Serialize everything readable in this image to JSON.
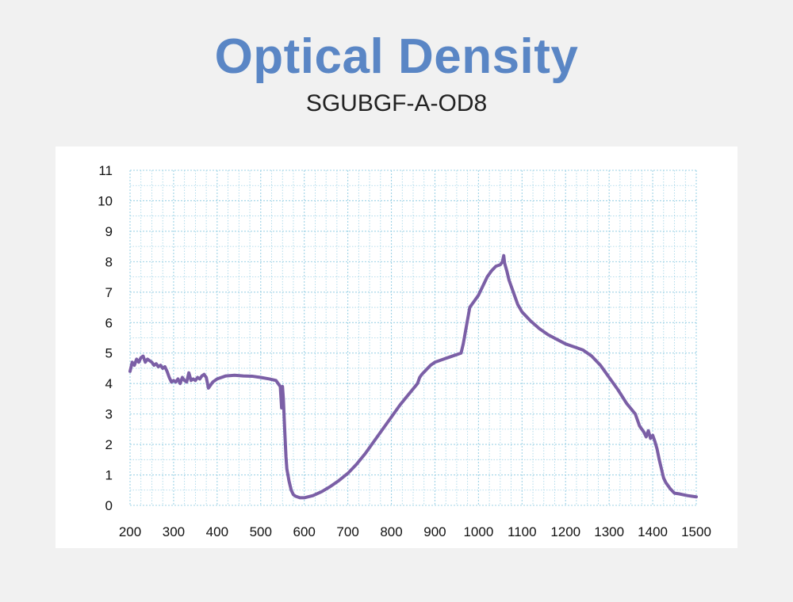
{
  "chart_data": {
    "type": "line",
    "title": "Optical Density",
    "subtitle": "SGUBGF-A-OD8",
    "xlabel": "",
    "ylabel": "",
    "xlim": [
      200,
      1500
    ],
    "ylim": [
      0,
      11
    ],
    "x_ticks": [
      200,
      300,
      400,
      500,
      600,
      700,
      800,
      900,
      1000,
      1100,
      1200,
      1300,
      1400,
      1500
    ],
    "y_ticks": [
      0,
      1,
      2,
      3,
      4,
      5,
      6,
      7,
      8,
      9,
      10,
      11
    ],
    "grid": true,
    "line_color": "#7b5fa6",
    "grid_color": "#9fd3e6",
    "series": [
      {
        "x": [
          200,
          205,
          210,
          215,
          220,
          225,
          230,
          235,
          240,
          245,
          250,
          255,
          260,
          265,
          270,
          275,
          280,
          285,
          290,
          295,
          300,
          305,
          310,
          315,
          320,
          325,
          330,
          335,
          340,
          345,
          350,
          355,
          360,
          365,
          370,
          375,
          380,
          390,
          400,
          420,
          440,
          460,
          480,
          500,
          520,
          535,
          540,
          545,
          548,
          550,
          552,
          555,
          558,
          560,
          565,
          570,
          575,
          580,
          590,
          600,
          620,
          640,
          660,
          680,
          700,
          720,
          740,
          760,
          780,
          800,
          820,
          840,
          860,
          865,
          870,
          880,
          890,
          900,
          920,
          940,
          960,
          965,
          970,
          975,
          980,
          990,
          1000,
          1010,
          1020,
          1030,
          1040,
          1050,
          1055,
          1058,
          1060,
          1062,
          1065,
          1070,
          1080,
          1090,
          1100,
          1120,
          1140,
          1160,
          1180,
          1200,
          1220,
          1240,
          1250,
          1260,
          1280,
          1300,
          1320,
          1340,
          1360,
          1370,
          1380,
          1385,
          1390,
          1395,
          1400,
          1405,
          1410,
          1415,
          1420,
          1425,
          1430,
          1440,
          1450,
          1460,
          1470,
          1480,
          1490,
          1500
        ],
        "y": [
          4.4,
          4.7,
          4.6,
          4.8,
          4.7,
          4.85,
          4.9,
          4.7,
          4.8,
          4.75,
          4.7,
          4.6,
          4.65,
          4.55,
          4.6,
          4.5,
          4.55,
          4.4,
          4.2,
          4.05,
          4.1,
          4.05,
          4.15,
          4.0,
          4.2,
          4.1,
          4.05,
          4.35,
          4.1,
          4.15,
          4.1,
          4.2,
          4.15,
          4.25,
          4.3,
          4.2,
          3.85,
          4.05,
          4.15,
          4.25,
          4.27,
          4.25,
          4.24,
          4.2,
          4.15,
          4.1,
          4.0,
          3.9,
          3.2,
          3.9,
          3.5,
          2.5,
          1.6,
          1.2,
          0.8,
          0.5,
          0.35,
          0.3,
          0.25,
          0.25,
          0.32,
          0.45,
          0.62,
          0.82,
          1.05,
          1.35,
          1.7,
          2.1,
          2.5,
          2.9,
          3.3,
          3.65,
          4.0,
          4.2,
          4.3,
          4.45,
          4.6,
          4.7,
          4.8,
          4.9,
          5.0,
          5.3,
          5.7,
          6.1,
          6.5,
          6.7,
          6.9,
          7.2,
          7.5,
          7.7,
          7.85,
          7.9,
          8.0,
          8.2,
          7.95,
          7.85,
          7.7,
          7.4,
          7.0,
          6.6,
          6.35,
          6.05,
          5.8,
          5.6,
          5.45,
          5.3,
          5.2,
          5.1,
          5.0,
          4.9,
          4.6,
          4.2,
          3.8,
          3.35,
          3.0,
          2.6,
          2.4,
          2.25,
          2.45,
          2.2,
          2.3,
          2.1,
          1.85,
          1.5,
          1.2,
          0.9,
          0.75,
          0.55,
          0.4,
          0.38,
          0.35,
          0.32,
          0.3,
          0.28
        ]
      }
    ]
  }
}
